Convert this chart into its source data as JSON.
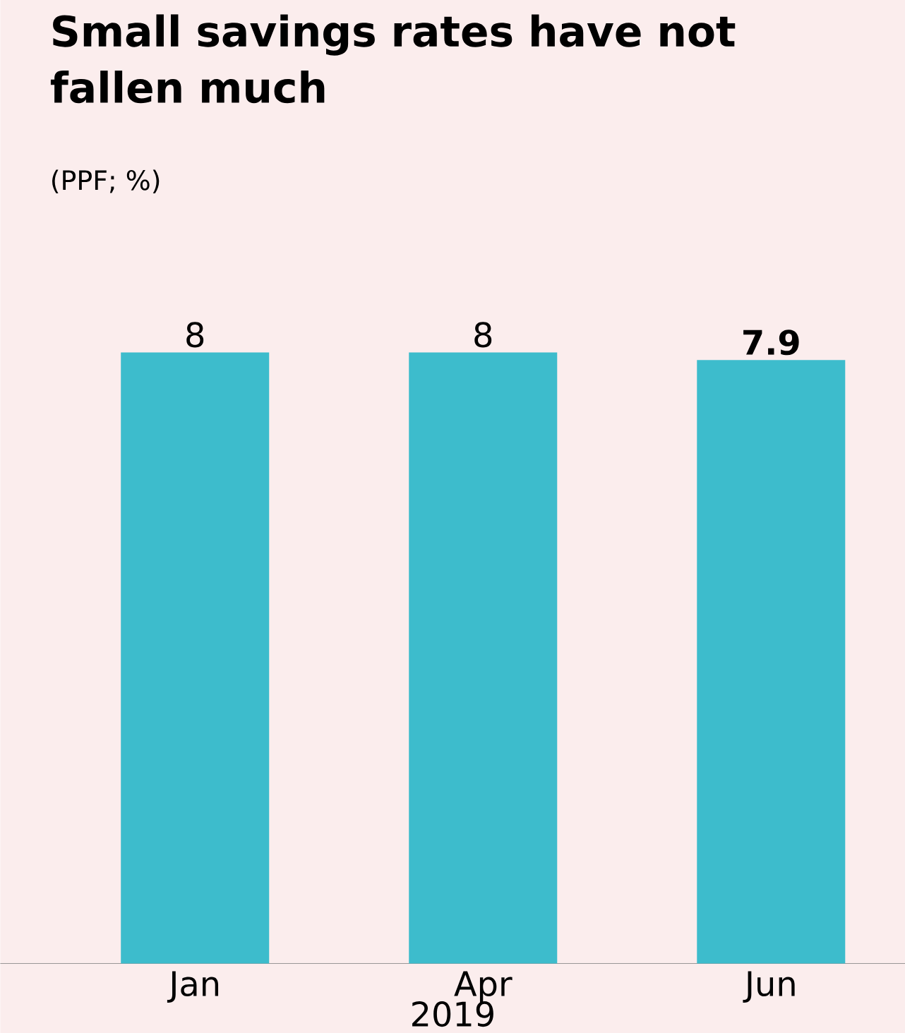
{
  "chart_data": {
    "type": "bar",
    "title": "Small savings rates have not fallen much",
    "subtitle": "(PPF; %)",
    "categories": [
      "Jan",
      "Apr",
      "Jun"
    ],
    "xlabel": "2019",
    "values": [
      8,
      8,
      7.9
    ],
    "color": "#3dbccc",
    "value_labels": [
      "8",
      "8",
      "**7.9**"
    ]
  }
}
